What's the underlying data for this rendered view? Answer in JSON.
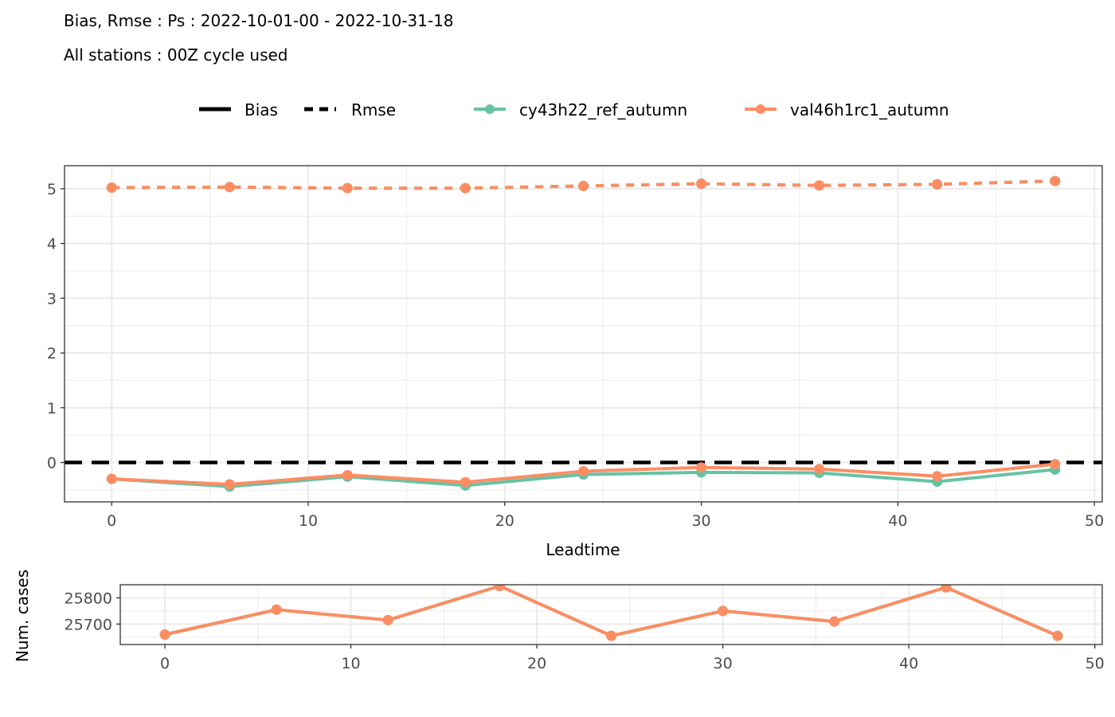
{
  "title": "Bias, Rmse : Ps : 2022-10-01-00 - 2022-10-31-18",
  "subtitle": "All stations : 00Z cycle used",
  "colors": {
    "cy43h22_ref_autumn": "#66c2a5",
    "val46h1rc1_autumn": "#fc8d62",
    "zero_line": "#000000",
    "grid": "#ebebeb",
    "panel_border": "#333333"
  },
  "legend": {
    "linetype_items": [
      {
        "label": "Bias",
        "dash": "solid"
      },
      {
        "label": "Rmse",
        "dash": "dashed"
      }
    ],
    "model_items": [
      {
        "label": "cy43h22_ref_autumn",
        "color": "#66c2a5"
      },
      {
        "label": "val46h1rc1_autumn",
        "color": "#fc8d62"
      }
    ]
  },
  "chart_data": [
    {
      "type": "line",
      "panel": "scores",
      "xlabel": "Leadtime",
      "ylabel": "",
      "xlim": [
        -2.4,
        50.4
      ],
      "ylim": [
        -0.72,
        5.42
      ],
      "xticks": [
        0,
        10,
        20,
        30,
        40,
        50
      ],
      "yticks": [
        0,
        1,
        2,
        3,
        4,
        5
      ],
      "grid": true,
      "legend_position": "top",
      "x": [
        0,
        6,
        12,
        18,
        24,
        30,
        36,
        42,
        48
      ],
      "series": [
        {
          "name": "cy43h22_ref_autumn",
          "metric": "Bias",
          "color": "#66c2a5",
          "values": [
            -0.3,
            -0.44,
            -0.26,
            -0.42,
            -0.22,
            -0.18,
            -0.19,
            -0.35,
            -0.13
          ]
        },
        {
          "name": "val46h1rc1_autumn",
          "metric": "Bias",
          "color": "#fc8d62",
          "values": [
            -0.3,
            -0.4,
            -0.23,
            -0.36,
            -0.16,
            -0.09,
            -0.12,
            -0.25,
            -0.03
          ]
        },
        {
          "name": "cy43h22_ref_autumn",
          "metric": "Rmse",
          "color": "#66c2a5",
          "values": [
            5.02,
            5.03,
            5.01,
            5.01,
            5.05,
            5.09,
            5.06,
            5.08,
            5.14
          ]
        },
        {
          "name": "val46h1rc1_autumn",
          "metric": "Rmse",
          "color": "#fc8d62",
          "values": [
            5.02,
            5.03,
            5.01,
            5.01,
            5.05,
            5.09,
            5.06,
            5.08,
            5.14
          ]
        }
      ],
      "hline": 0
    },
    {
      "type": "line",
      "panel": "num_cases",
      "xlabel": "",
      "ylabel": "Num. cases",
      "xlim": [
        -2.4,
        50.4
      ],
      "ylim": [
        25622,
        25850
      ],
      "xticks": [
        0,
        10,
        20,
        30,
        40,
        50
      ],
      "yticks": [
        25700,
        25800
      ],
      "grid": true,
      "x": [
        0,
        6,
        12,
        18,
        24,
        30,
        36,
        42,
        48
      ],
      "series": [
        {
          "name": "cy43h22_ref_autumn",
          "color": "#66c2a5",
          "values": [
            25660,
            25755,
            25715,
            25845,
            25655,
            25750,
            25710,
            25840,
            25655
          ]
        },
        {
          "name": "val46h1rc1_autumn",
          "color": "#fc8d62",
          "values": [
            25660,
            25755,
            25715,
            25845,
            25655,
            25750,
            25710,
            25840,
            25655
          ]
        }
      ]
    }
  ]
}
